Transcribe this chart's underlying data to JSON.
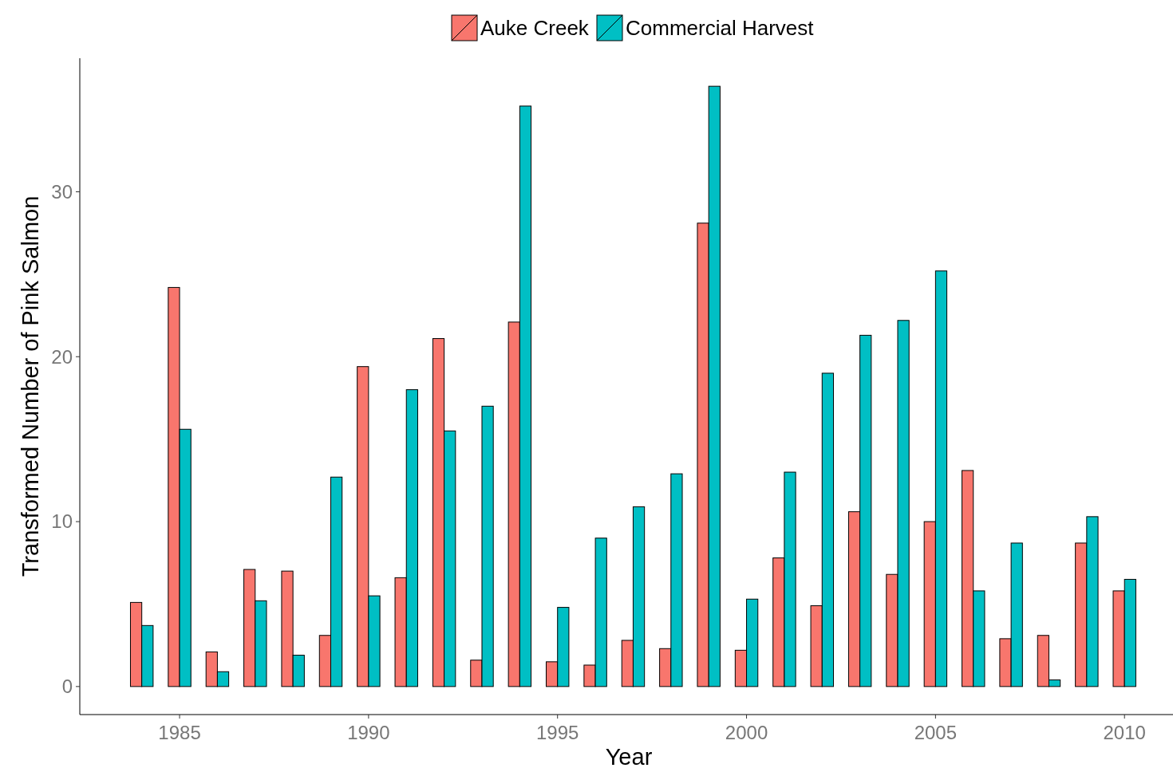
{
  "chart_data": {
    "type": "bar",
    "xlabel": "Year",
    "ylabel": "Transformed Number of Pink Salmon",
    "x": [
      1984,
      1985,
      1986,
      1987,
      1988,
      1989,
      1990,
      1991,
      1992,
      1993,
      1994,
      1995,
      1996,
      1997,
      1998,
      1999,
      2000,
      2001,
      2002,
      2003,
      2004,
      2005,
      2006,
      2007,
      2008,
      2009,
      2010
    ],
    "series": [
      {
        "name": "Auke Creek",
        "color": "#f8766d",
        "values": [
          5.1,
          24.2,
          2.1,
          7.1,
          7.0,
          3.1,
          19.4,
          6.6,
          21.1,
          1.6,
          22.1,
          1.5,
          1.3,
          2.8,
          2.3,
          28.1,
          2.2,
          7.8,
          4.9,
          10.6,
          6.8,
          10.0,
          13.1,
          2.9,
          3.1,
          8.7,
          5.8
        ]
      },
      {
        "name": "Commercial Harvest",
        "color": "#00bfc4",
        "values": [
          3.7,
          15.6,
          0.9,
          5.2,
          1.9,
          12.7,
          5.5,
          18.0,
          15.5,
          17.0,
          35.2,
          4.8,
          9.0,
          10.9,
          12.9,
          36.4,
          5.3,
          13.0,
          19.0,
          21.3,
          22.2,
          25.2,
          5.8,
          8.7,
          0.4,
          10.3,
          6.5
        ]
      }
    ],
    "xlim": [
      1982.36,
      2011.41
    ],
    "xticks": [
      1985,
      1990,
      1995,
      2000,
      2005,
      2010
    ],
    "ylim": [
      -1.7,
      38.1
    ],
    "yticks": [
      0,
      10,
      20,
      30
    ],
    "grid": false,
    "legend": "top"
  }
}
